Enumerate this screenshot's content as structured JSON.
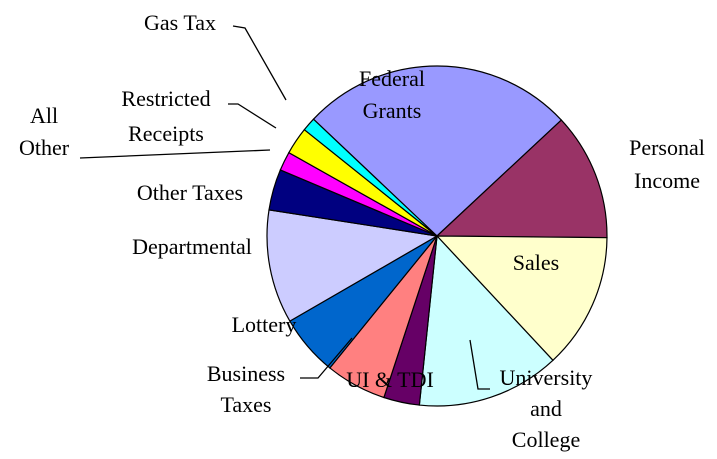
{
  "chart_data": {
    "type": "pie",
    "categories": [
      "Federal Grants",
      "Personal Income",
      "Sales",
      "University and College",
      "UI & TDI",
      "Business Taxes",
      "Lottery",
      "Departmental",
      "Other Taxes",
      "All Other",
      "Restricted Receipts",
      "Gas Tax"
    ],
    "values": [
      26,
      12.1,
      12.9,
      13.6,
      3.4,
      5.8,
      5.8,
      10.8,
      3.9,
      1.8,
      2.6,
      1.3
    ],
    "colors": [
      "#9999ff",
      "#993366",
      "#ffffcc",
      "#ccffff",
      "#660066",
      "#ff8080",
      "#0066cc",
      "#ccccff",
      "#000080",
      "#ff00ff",
      "#ffff00",
      "#00ffff"
    ]
  }
}
